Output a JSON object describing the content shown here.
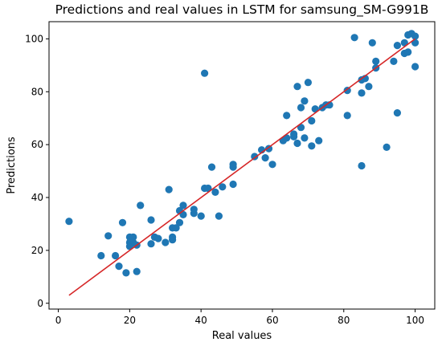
{
  "chart_data": {
    "type": "scatter",
    "title": "Predictions and real values in LSTM for samsung_SM-G991B",
    "xlabel": "Real values",
    "ylabel": "Predictions",
    "xlim": [
      -2.6,
      105.5
    ],
    "ylim": [
      -2.2,
      106.5
    ],
    "xticks": [
      0,
      20,
      40,
      60,
      80,
      100
    ],
    "yticks": [
      0,
      20,
      40,
      60,
      80,
      100
    ],
    "grid": false,
    "colors": {
      "points": "#1f77b4",
      "line": "#d62728"
    },
    "series": [
      {
        "kind": "scatter",
        "points": [
          [
            3,
            31
          ],
          [
            12,
            18
          ],
          [
            14,
            25.5
          ],
          [
            16,
            18
          ],
          [
            17,
            14
          ],
          [
            18,
            30.5
          ],
          [
            19,
            11.5
          ],
          [
            20,
            25
          ],
          [
            20,
            23
          ],
          [
            20,
            21.5
          ],
          [
            21,
            25
          ],
          [
            21,
            23
          ],
          [
            22,
            12
          ],
          [
            22,
            22
          ],
          [
            23,
            37
          ],
          [
            26,
            31.5
          ],
          [
            26,
            22.5
          ],
          [
            27,
            25
          ],
          [
            28,
            24.5
          ],
          [
            30,
            23
          ],
          [
            31,
            43
          ],
          [
            32,
            28.5
          ],
          [
            32,
            25
          ],
          [
            32,
            24
          ],
          [
            33,
            28.5
          ],
          [
            34,
            30.5
          ],
          [
            34,
            35
          ],
          [
            35,
            37
          ],
          [
            35,
            33.5
          ],
          [
            38,
            34
          ],
          [
            38,
            35.5
          ],
          [
            40,
            33
          ],
          [
            41,
            87
          ],
          [
            41,
            43.5
          ],
          [
            42,
            43.5
          ],
          [
            43,
            51.5
          ],
          [
            44,
            42
          ],
          [
            45,
            33
          ],
          [
            46,
            44
          ],
          [
            49,
            52.5
          ],
          [
            49,
            51.5
          ],
          [
            49,
            45
          ],
          [
            55,
            55.5
          ],
          [
            57,
            58
          ],
          [
            58,
            55
          ],
          [
            59,
            58.5
          ],
          [
            60,
            52.5
          ],
          [
            63,
            61.5
          ],
          [
            64,
            71
          ],
          [
            64,
            62.5
          ],
          [
            66,
            64
          ],
          [
            66,
            63
          ],
          [
            67,
            82
          ],
          [
            67,
            60.5
          ],
          [
            68,
            74
          ],
          [
            68,
            66.5
          ],
          [
            69,
            76.5
          ],
          [
            69,
            62.5
          ],
          [
            70,
            83.5
          ],
          [
            71,
            69
          ],
          [
            71,
            59.5
          ],
          [
            72,
            73.5
          ],
          [
            73,
            61.5
          ],
          [
            74,
            74
          ],
          [
            75,
            75
          ],
          [
            76,
            75
          ],
          [
            81,
            80.5
          ],
          [
            81,
            71
          ],
          [
            83,
            100.5
          ],
          [
            85,
            84.5
          ],
          [
            85,
            79.5
          ],
          [
            85,
            52
          ],
          [
            86,
            85
          ],
          [
            87,
            82
          ],
          [
            88,
            98.5
          ],
          [
            89,
            91.5
          ],
          [
            89,
            89
          ],
          [
            92,
            59
          ],
          [
            94,
            91.5
          ],
          [
            95,
            72
          ],
          [
            95,
            97.5
          ],
          [
            97,
            98.5
          ],
          [
            97,
            94.5
          ],
          [
            98,
            101.5
          ],
          [
            98,
            95
          ],
          [
            99,
            102
          ],
          [
            100,
            101
          ],
          [
            100,
            98.5
          ],
          [
            100,
            89.5
          ]
        ]
      },
      {
        "kind": "line",
        "points": [
          [
            3,
            3
          ],
          [
            100,
            100
          ]
        ]
      }
    ]
  }
}
